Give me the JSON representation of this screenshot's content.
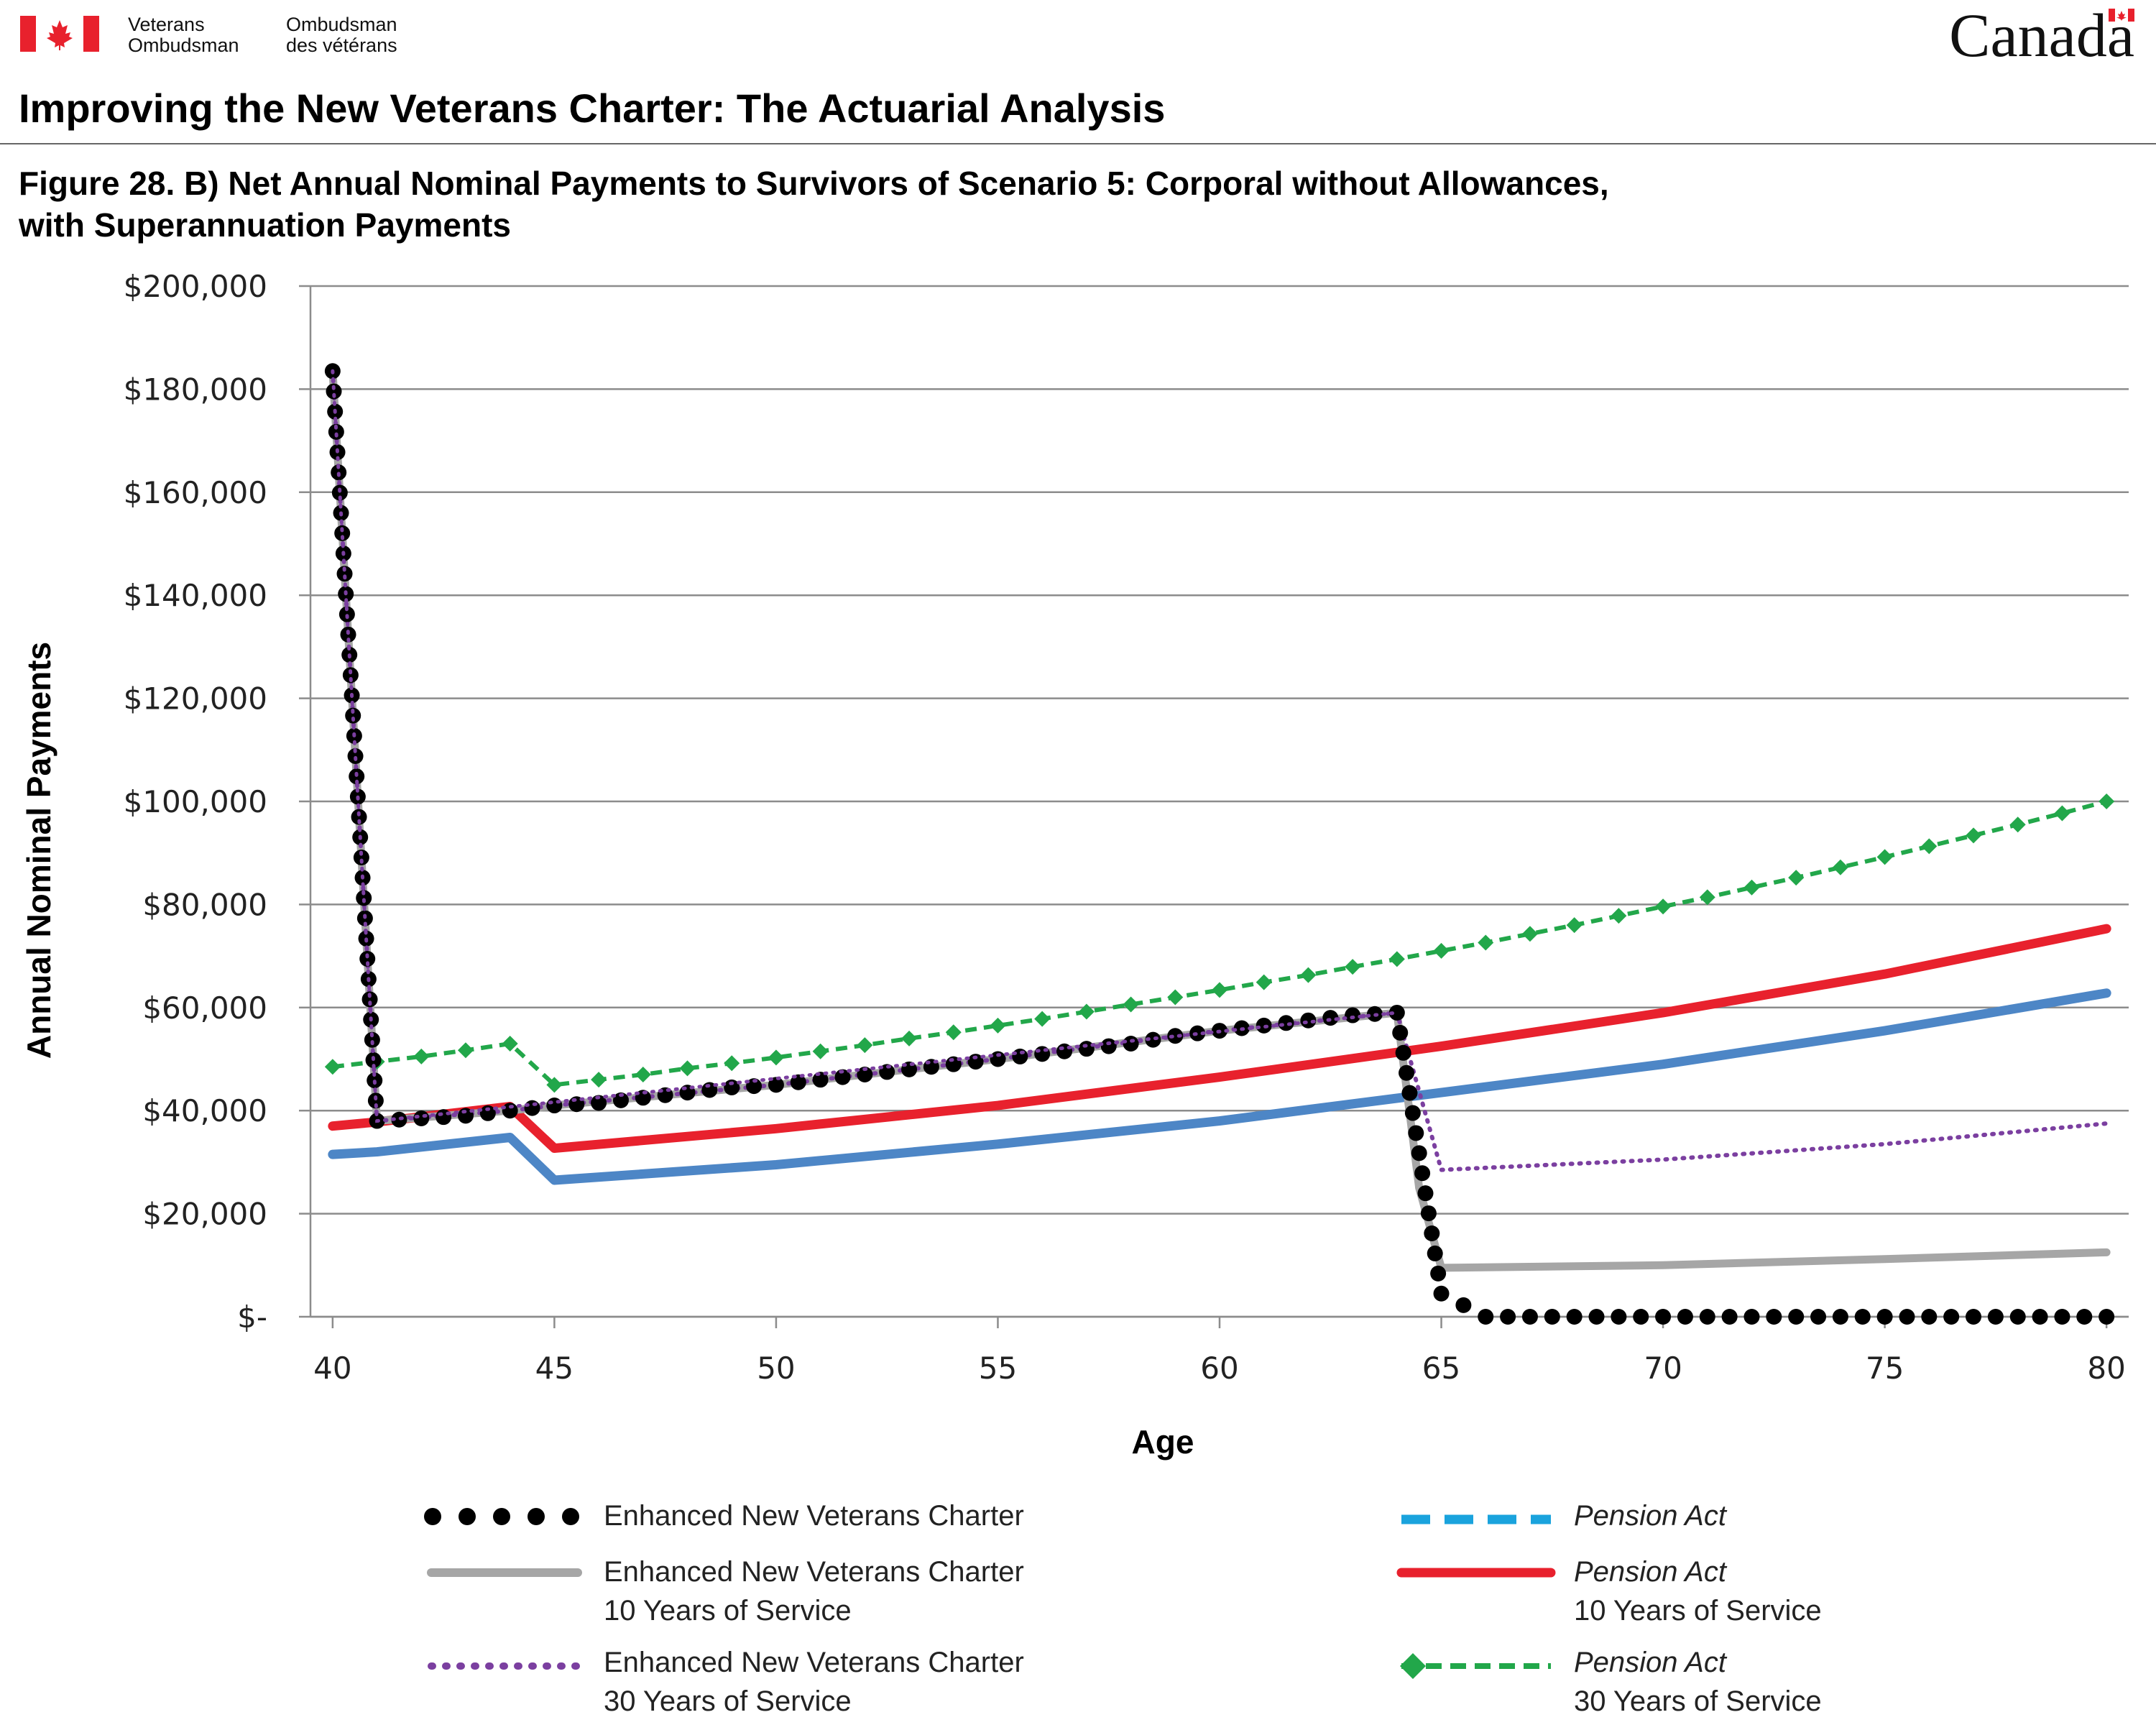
{
  "header": {
    "org_en_line1": "Veterans",
    "org_en_line2": "Ombudsman",
    "org_fr_line1": "Ombudsman",
    "org_fr_line2": "des vétérans",
    "wordmark": "Canada",
    "flag_colors": {
      "red": "#e8212d",
      "white": "#ffffff"
    }
  },
  "document": {
    "title": "Improving the New Veterans Charter: The Actuarial Analysis",
    "figure_title_line1": "Figure 28. B) Net Annual Nominal Payments to Survivors of Scenario 5: Corporal without Allowances,",
    "figure_title_line2": "with Superannuation Payments"
  },
  "chart_data": {
    "type": "line",
    "xlabel": "Age",
    "ylabel": "Annual Nominal Payments",
    "xlim": [
      39.5,
      80.5
    ],
    "ylim": [
      0,
      200000
    ],
    "x_ticks": [
      40,
      45,
      50,
      55,
      60,
      65,
      70,
      75,
      80
    ],
    "y_ticks": [
      {
        "value": 0,
        "label": "$-"
      },
      {
        "value": 20000,
        "label": "$20,000"
      },
      {
        "value": 40000,
        "label": "$40,000"
      },
      {
        "value": 60000,
        "label": "$60,000"
      },
      {
        "value": 80000,
        "label": "$80,000"
      },
      {
        "value": 100000,
        "label": "$100,000"
      },
      {
        "value": 120000,
        "label": "$120,000"
      },
      {
        "value": 140000,
        "label": "$140,000"
      },
      {
        "value": 160000,
        "label": "$160,000"
      },
      {
        "value": 180000,
        "label": "$180,000"
      },
      {
        "value": 200000,
        "label": "$200,000"
      }
    ],
    "grid": "horizontal",
    "legend_position": "bottom",
    "series": [
      {
        "key": "enhanced_nvc",
        "legend_line1": "Enhanced New Veterans Charter",
        "legend_line2": "",
        "color": "#000000",
        "style": "big-dots",
        "points": [
          [
            40,
            183500
          ],
          [
            41,
            38000
          ],
          [
            42,
            38500
          ],
          [
            43,
            39000
          ],
          [
            44,
            40000
          ],
          [
            45,
            41000
          ],
          [
            46,
            41500
          ],
          [
            47,
            42500
          ],
          [
            48,
            43500
          ],
          [
            49,
            44500
          ],
          [
            50,
            45000
          ],
          [
            51,
            46000
          ],
          [
            52,
            47000
          ],
          [
            53,
            48000
          ],
          [
            54,
            49000
          ],
          [
            55,
            50000
          ],
          [
            56,
            51000
          ],
          [
            57,
            52000
          ],
          [
            58,
            53000
          ],
          [
            59,
            54500
          ],
          [
            60,
            55500
          ],
          [
            61,
            56500
          ],
          [
            62,
            57500
          ],
          [
            63,
            58500
          ],
          [
            64,
            59000
          ],
          [
            65,
            4500
          ],
          [
            66,
            0
          ],
          [
            67,
            0
          ],
          [
            68,
            0
          ],
          [
            69,
            0
          ],
          [
            70,
            0
          ],
          [
            71,
            0
          ],
          [
            72,
            0
          ],
          [
            73,
            0
          ],
          [
            74,
            0
          ],
          [
            75,
            0
          ],
          [
            76,
            0
          ],
          [
            77,
            0
          ],
          [
            78,
            0
          ],
          [
            79,
            0
          ],
          [
            80,
            0
          ]
        ],
        "dense_drops": true
      },
      {
        "key": "enhanced_nvc_10",
        "legend_line1": "Enhanced New Veterans Charter",
        "legend_line2": "10 Years of Service",
        "color": "#a6a6a6",
        "style": "solid",
        "points": [
          [
            40,
            183500
          ],
          [
            41,
            38000
          ],
          [
            44,
            40000
          ],
          [
            45,
            41000
          ],
          [
            50,
            45000
          ],
          [
            55,
            50000
          ],
          [
            60,
            55500
          ],
          [
            64,
            59000
          ],
          [
            64.5,
            25000
          ],
          [
            65,
            9500
          ],
          [
            70,
            10000
          ],
          [
            75,
            11200
          ],
          [
            80,
            12500
          ]
        ]
      },
      {
        "key": "enhanced_nvc_30",
        "legend_line1": "Enhanced New Veterans Charter",
        "legend_line2": "30 Years of Service",
        "color": "#7b3fa0",
        "style": "dotted",
        "points": [
          [
            40,
            183500
          ],
          [
            41,
            38000
          ],
          [
            44,
            40000
          ],
          [
            45,
            41000
          ],
          [
            50,
            45000
          ],
          [
            55,
            50000
          ],
          [
            60,
            55500
          ],
          [
            64,
            59000
          ],
          [
            65,
            28500
          ],
          [
            70,
            30500
          ],
          [
            75,
            33500
          ],
          [
            80,
            37500
          ]
        ]
      },
      {
        "key": "pension_act",
        "legend_line1": "Pension Act",
        "legend_line2": "",
        "color": "#1aa3dd",
        "style": "dashed",
        "points": []
      },
      {
        "key": "pension_act_10",
        "legend_line1": "Pension Act",
        "legend_line2": "10 Years of Service",
        "color": "#e8212d",
        "style": "solid",
        "points": [
          [
            40,
            37000
          ],
          [
            41,
            37800
          ],
          [
            44,
            40800
          ],
          [
            45,
            32700
          ],
          [
            50,
            36500
          ],
          [
            55,
            41000
          ],
          [
            60,
            46500
          ],
          [
            65,
            52500
          ],
          [
            70,
            59000
          ],
          [
            75,
            66500
          ],
          [
            80,
            75300
          ]
        ]
      },
      {
        "key": "pension_act_30_superseded",
        "legend_line1": "",
        "legend_line2": "",
        "color": "#4d86c6",
        "style": "solid",
        "points": [
          [
            40,
            31500
          ],
          [
            41,
            32000
          ],
          [
            44,
            34800
          ],
          [
            45,
            26500
          ],
          [
            50,
            29500
          ],
          [
            55,
            33500
          ],
          [
            60,
            38000
          ],
          [
            65,
            43500
          ],
          [
            70,
            49000
          ],
          [
            75,
            55500
          ],
          [
            80,
            62800
          ]
        ]
      },
      {
        "key": "pension_act_30",
        "legend_line1": "Pension Act",
        "legend_line2": "30 Years of Service",
        "color": "#22a74a",
        "style": "dashed-diamond",
        "points": [
          [
            40,
            48500
          ],
          [
            41,
            49500
          ],
          [
            42,
            50500
          ],
          [
            43,
            51700
          ],
          [
            44,
            53000
          ],
          [
            45,
            45000
          ],
          [
            46,
            46000
          ],
          [
            47,
            47000
          ],
          [
            48,
            48200
          ],
          [
            49,
            49200
          ],
          [
            50,
            50300
          ],
          [
            51,
            51500
          ],
          [
            52,
            52700
          ],
          [
            53,
            54000
          ],
          [
            54,
            55200
          ],
          [
            55,
            56500
          ],
          [
            56,
            57800
          ],
          [
            57,
            59200
          ],
          [
            58,
            60600
          ],
          [
            59,
            62000
          ],
          [
            60,
            63400
          ],
          [
            61,
            64900
          ],
          [
            62,
            66300
          ],
          [
            63,
            67900
          ],
          [
            64,
            69400
          ],
          [
            65,
            71000
          ],
          [
            66,
            72600
          ],
          [
            67,
            74300
          ],
          [
            68,
            76000
          ],
          [
            69,
            77800
          ],
          [
            70,
            79600
          ],
          [
            71,
            81400
          ],
          [
            72,
            83300
          ],
          [
            73,
            85200
          ],
          [
            74,
            87200
          ],
          [
            75,
            89200
          ],
          [
            76,
            91300
          ],
          [
            77,
            93400
          ],
          [
            78,
            95500
          ],
          [
            79,
            97700
          ],
          [
            80,
            100000
          ]
        ]
      }
    ]
  }
}
